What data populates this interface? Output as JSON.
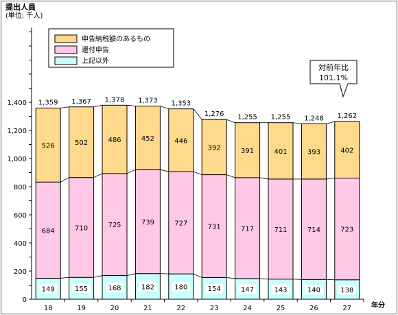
{
  "chart_data": {
    "type": "bar",
    "stacked": true,
    "title": "提出人員",
    "unit_label": "(単位: 千人)",
    "xlabel": "年分",
    "categories": [
      "18",
      "19",
      "20",
      "21",
      "22",
      "23",
      "24",
      "25",
      "26",
      "27"
    ],
    "ylim": [
      0,
      1400
    ],
    "yticks": [
      "0",
      "200",
      "400",
      "600",
      "800",
      "1,000",
      "1,200",
      "1,400"
    ],
    "grid": false,
    "legend_position": "top-left",
    "series": [
      {
        "name": "上記以外",
        "color": "#c8ffff",
        "values": [
          149,
          155,
          168,
          182,
          180,
          154,
          147,
          143,
          140,
          138
        ]
      },
      {
        "name": "還付申告",
        "color": "#ffc8e6",
        "values": [
          684,
          710,
          725,
          739,
          727,
          731,
          717,
          711,
          714,
          723
        ]
      },
      {
        "name": "申告納税額のあるもの",
        "color": "#ffd98c",
        "values": [
          526,
          502,
          486,
          452,
          446,
          392,
          391,
          401,
          393,
          402
        ]
      }
    ],
    "legend_order": [
      2,
      1,
      0
    ],
    "totals": [
      "1,359",
      "1,367",
      "1,378",
      "1,373",
      "1,353",
      "1,276",
      "1,255",
      "1,255",
      "1,248",
      "1,262"
    ],
    "callout": {
      "line1": "対前年比",
      "line2": "101.1%"
    }
  }
}
